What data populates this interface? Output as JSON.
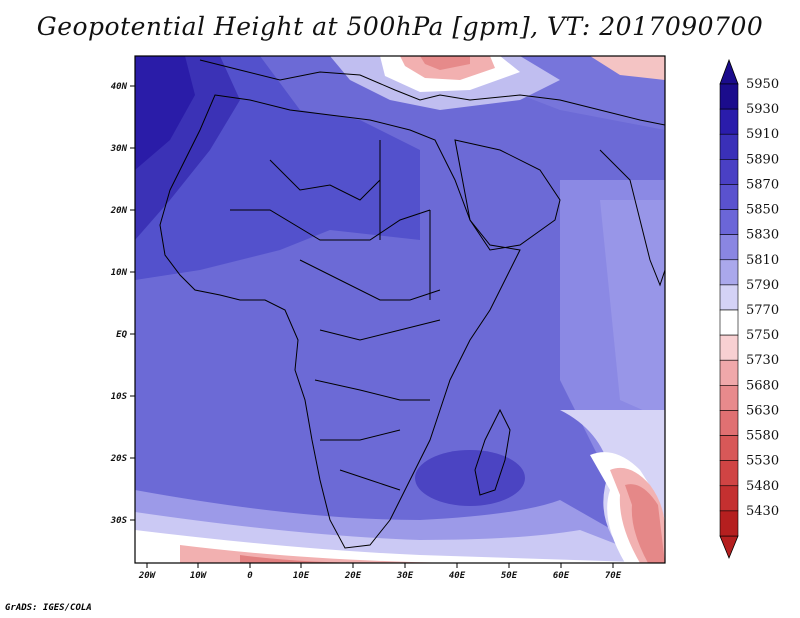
{
  "title": "Geopotential Height at 500hPa [gpm], VT: 2017090700",
  "credit": "GrADS: IGES/COLA",
  "lat_labels": [
    "40N",
    "30N",
    "20N",
    "10N",
    "EQ",
    "10S",
    "20S",
    "30S"
  ],
  "lon_labels": [
    "20W",
    "10W",
    "0",
    "10E",
    "20E",
    "30E",
    "40E",
    "50E",
    "60E",
    "70E"
  ],
  "colorbar": {
    "levels": [
      "5950",
      "5930",
      "5910",
      "5890",
      "5870",
      "5850",
      "5830",
      "5810",
      "5790",
      "5770",
      "5750",
      "5730",
      "5680",
      "5630",
      "5580",
      "5530",
      "5480",
      "5430"
    ],
    "colors": [
      "#1b0c8c",
      "#2a1cab",
      "#3a30b8",
      "#4a40c4",
      "#5a52ce",
      "#6b66d8",
      "#8a86e2",
      "#aaa8ec",
      "#d4d2f6",
      "#ffffff",
      "#f8d0d2",
      "#f0a8aa",
      "#e88a8c",
      "#e07072",
      "#d85858",
      "#d04444",
      "#c43030",
      "#b51f1f"
    ]
  }
}
